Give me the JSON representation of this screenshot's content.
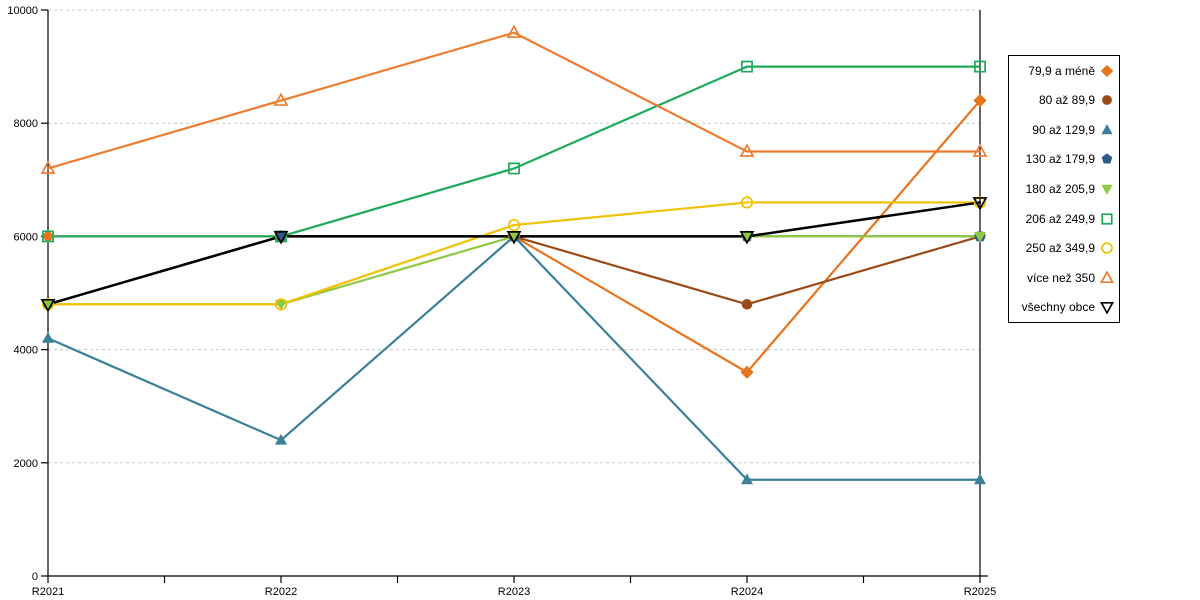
{
  "chart_data": {
    "type": "line",
    "title": "",
    "xlabel": "",
    "ylabel": "",
    "x_labels": [
      "R2021",
      "R2022",
      "R2023",
      "R2024",
      "R2025"
    ],
    "ylim": [
      0,
      10000
    ],
    "y_ticks": [
      0,
      2000,
      4000,
      6000,
      8000,
      10000
    ],
    "grid": "horizontal-dashed",
    "gridline_color": "#c8c8c8",
    "axis_color": "#000000",
    "legend_position": "right",
    "series": [
      {
        "name": "79,9 a méně",
        "marker": "diamond",
        "fill": "filled",
        "color": "#e8751e",
        "values": [
          6000,
          6000,
          6000,
          3600,
          8400
        ]
      },
      {
        "name": "80 až 89,9",
        "marker": "circle",
        "fill": "filled",
        "color": "#9a4b17",
        "values": [
          4800,
          6000,
          6000,
          4800,
          6000
        ]
      },
      {
        "name": "90 až 129,9",
        "marker": "triangle-up",
        "fill": "filled",
        "color": "#3c7f99",
        "values": [
          4200,
          2400,
          6000,
          1700,
          1700
        ]
      },
      {
        "name": "130 až 179,9",
        "marker": "pentagon",
        "fill": "filled",
        "color": "#2f5b87",
        "values": [
          4800,
          6000,
          6000,
          6000,
          6000
        ]
      },
      {
        "name": "180 až 205,9",
        "marker": "triangle-down",
        "fill": "filled",
        "color": "#8fc843",
        "values": [
          4800,
          4800,
          6000,
          6000,
          6000
        ]
      },
      {
        "name": "206 až 249,9",
        "marker": "square",
        "fill": "open",
        "color": "#1fa95c",
        "values": [
          6000,
          6000,
          7200,
          9000,
          9000
        ]
      },
      {
        "name": "250 až 349,9",
        "marker": "circle",
        "fill": "open",
        "color": "#f2c200",
        "values": [
          4800,
          4800,
          6200,
          6600,
          6600
        ]
      },
      {
        "name": "více než 350",
        "marker": "triangle-up",
        "fill": "open",
        "color": "#ed7d31",
        "values": [
          7200,
          8400,
          9600,
          7500,
          7500
        ]
      },
      {
        "name": "všechny obce",
        "marker": "triangle-down",
        "fill": "open",
        "color": "#000000",
        "values": [
          4800,
          6000,
          6000,
          6000,
          6600
        ]
      }
    ]
  }
}
